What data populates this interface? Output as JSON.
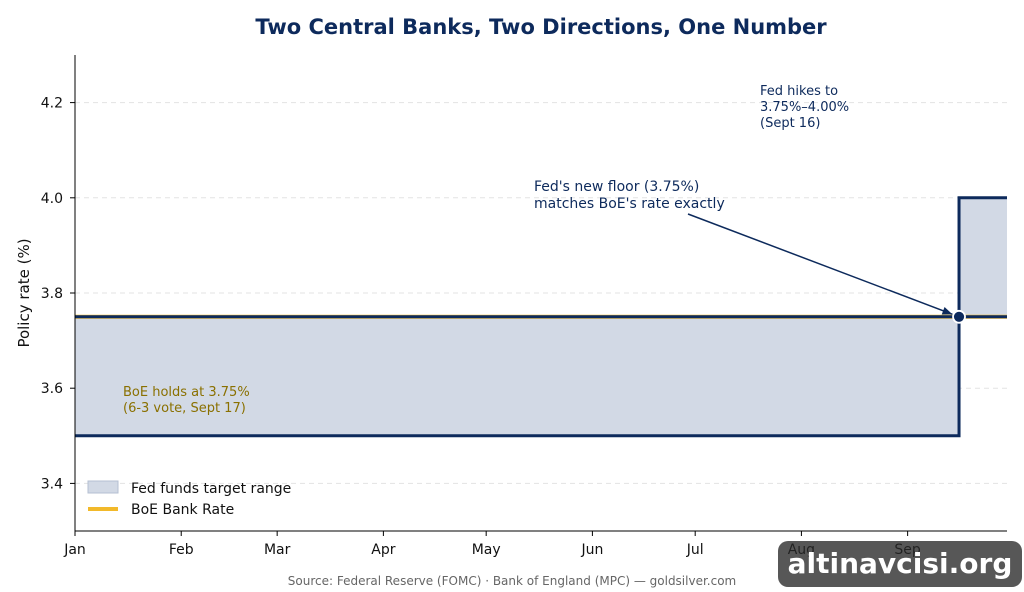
{
  "chart_data": {
    "type": "line",
    "title": "Two Central Banks, Two Directions, One Number",
    "xlabel": "",
    "ylabel": "Policy rate (%)",
    "ylim": [
      3.3,
      4.3
    ],
    "yticks": [
      "3.4",
      "3.6",
      "3.8",
      "4.0",
      "4.2"
    ],
    "ytick_values": [
      3.4,
      3.6,
      3.8,
      4.0,
      4.2
    ],
    "xticks": [
      "Jan",
      "Feb",
      "Mar",
      "Apr",
      "May",
      "Jun",
      "Jul",
      "Aug",
      "Sep"
    ],
    "xlim": [
      "Jan 1",
      "Sep 30"
    ],
    "grid": "horizontal dashed",
    "legend_position": "lower-left",
    "series": [
      {
        "name": "Fed funds target range",
        "kind": "range",
        "color": "#0d2a5c",
        "fill": "#d2d9e5",
        "segments": [
          {
            "from": "Jan 1",
            "to": "Sep 16",
            "low": 3.5,
            "high": 3.75
          },
          {
            "from": "Sep 16",
            "to": "Sep 30",
            "low": 3.75,
            "high": 4.0
          }
        ]
      },
      {
        "name": "BoE Bank Rate",
        "kind": "line",
        "color": "#f2b92a",
        "points": [
          {
            "x": "Jan 1",
            "y": 3.75
          },
          {
            "x": "Sep 30",
            "y": 3.75
          }
        ]
      }
    ],
    "marker": {
      "x": "Sep 16",
      "y": 3.75
    },
    "annotations": {
      "fed_hike": [
        "Fed hikes to",
        "3.75%–4.00%",
        "(Sept 16)"
      ],
      "floor": [
        "Fed's new floor (3.75%)",
        "matches BoE's rate exactly"
      ],
      "boe_hold": [
        "BoE holds at 3.75%",
        "(6-3 vote, Sept 17)"
      ]
    },
    "source": "Source: Federal Reserve (FOMC) · Bank of England (MPC) — goldsilver.com"
  },
  "watermark": "altinavcisi.org",
  "colors": {
    "title": "#0d2a5c",
    "fed": "#0d2a5c",
    "fed_fill": "#d2d9e5",
    "boe": "#f2b92a",
    "boe_text": "#8a7000",
    "grid": "#e3e3e3",
    "source_text": "#666666"
  }
}
